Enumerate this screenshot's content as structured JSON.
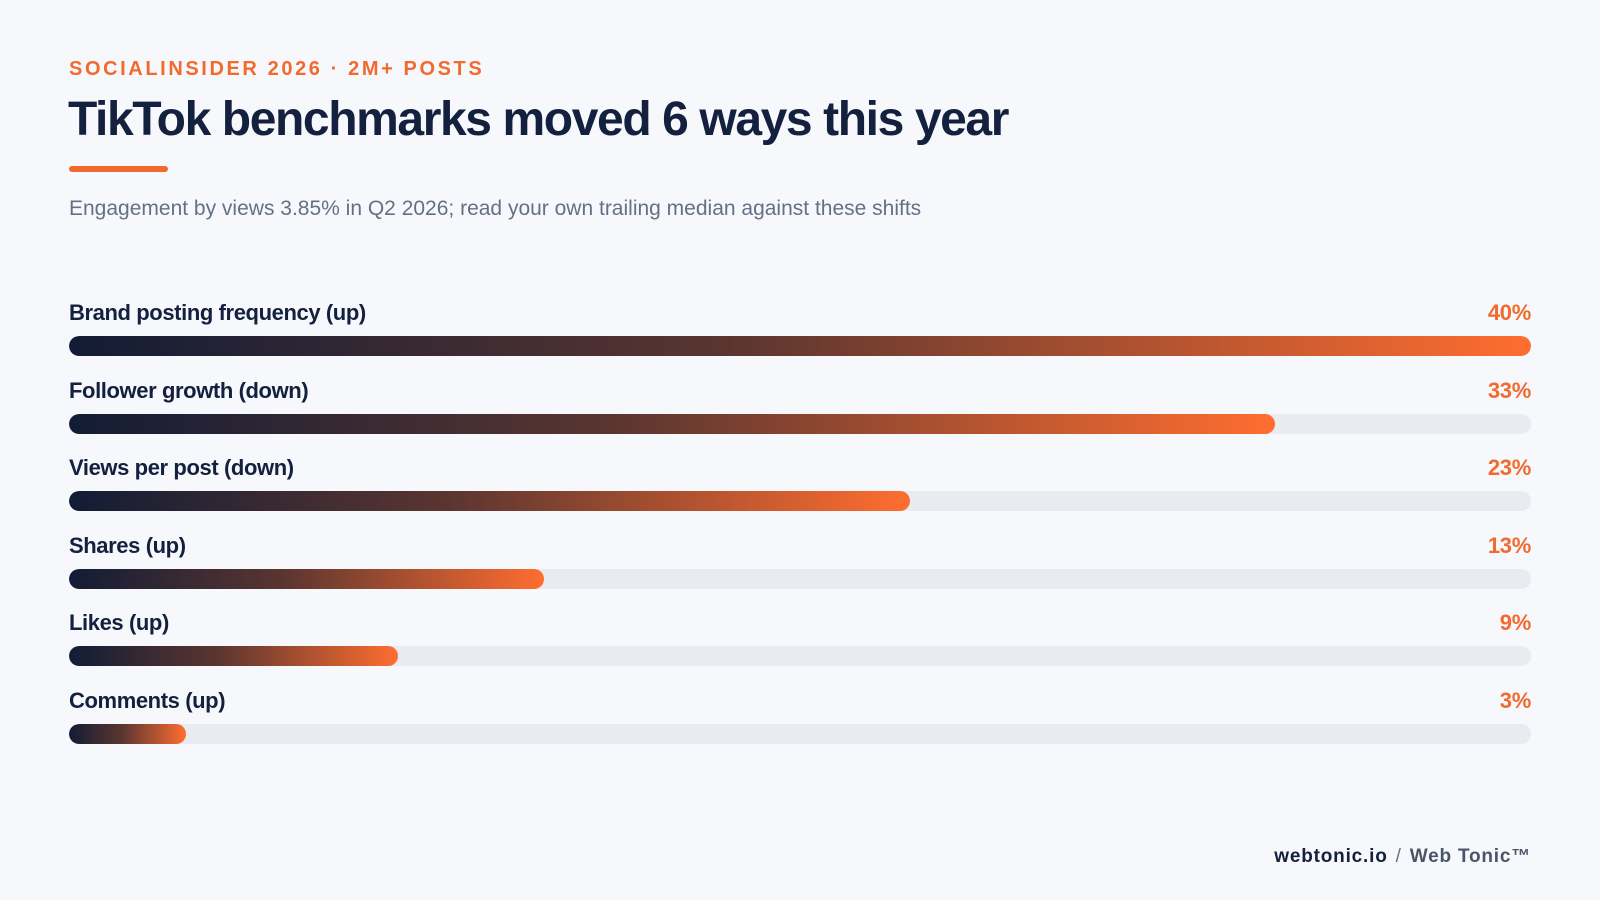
{
  "header": {
    "eyebrow": "SOCIALINSIDER 2026 · 2M+ POSTS",
    "title": "TikTok benchmarks moved 6 ways this year",
    "subtitle": "Engagement by views 3.85% in Q2 2026; read your own trailing median against these shifts"
  },
  "footer": {
    "site": "webtonic.io",
    "separator": "/",
    "brand": "Web Tonic™"
  },
  "colors": {
    "accent": "#f26a2e",
    "navy": "#13203e",
    "track": "#e8ebf0",
    "background": "#f6f8fb"
  },
  "chart_data": {
    "type": "bar",
    "orientation": "horizontal",
    "categories": [
      "Brand posting frequency (up)",
      "Follower growth (down)",
      "Views per post (down)",
      "Shares (up)",
      "Likes (up)",
      "Comments (up)"
    ],
    "values": [
      40,
      33,
      23,
      13,
      9,
      3
    ],
    "value_labels": [
      "40%",
      "33%",
      "23%",
      "13%",
      "9%",
      "3%"
    ],
    "unit": "%",
    "xlim": [
      0,
      40
    ],
    "grid": false,
    "legend": "none"
  }
}
